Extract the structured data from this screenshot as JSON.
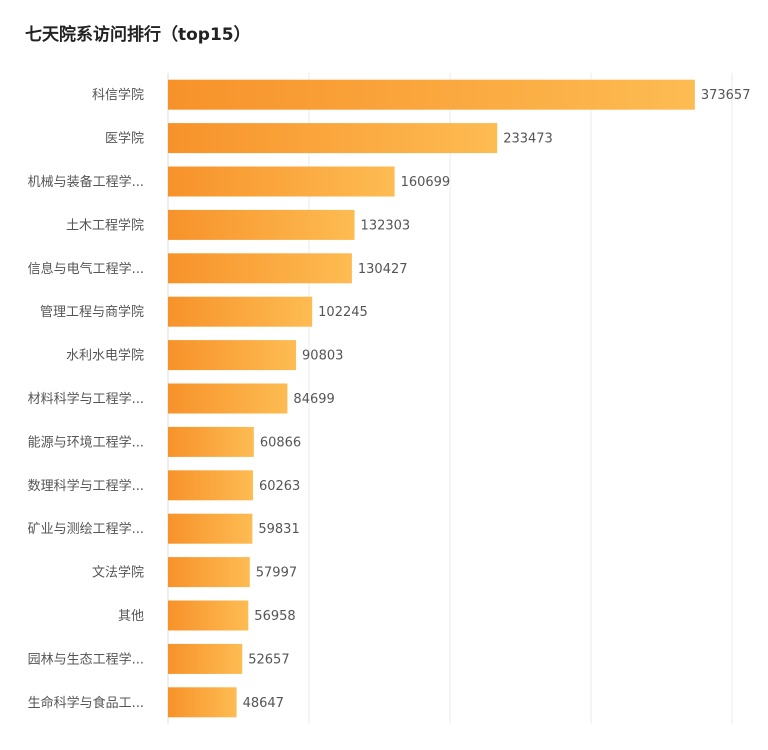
{
  "title": "七天院系访问排行（top15）",
  "colors": {
    "bar_start": "#f7922a",
    "bar_end": "#fdbc52"
  },
  "chart_data": {
    "type": "bar",
    "orientation": "horizontal",
    "title": "七天院系访问排行（top15）",
    "categories": [
      "科信学院",
      "医学院",
      "机械与装备工程学...",
      "土木工程学院",
      "信息与电气工程学...",
      "管理工程与商学院",
      "水利水电学院",
      "材料科学与工程学...",
      "能源与环境工程学...",
      "数理科学与工程学...",
      "矿业与测绘工程学...",
      "文法学院",
      "其他",
      "园林与生态工程学...",
      "生命科学与食品工..."
    ],
    "values": [
      373657,
      233473,
      160699,
      132303,
      130427,
      102245,
      90803,
      84699,
      60866,
      60263,
      59831,
      57997,
      56958,
      52657,
      48647
    ],
    "xlim": [
      0,
      400000
    ],
    "grid": true,
    "data_labels": true
  }
}
